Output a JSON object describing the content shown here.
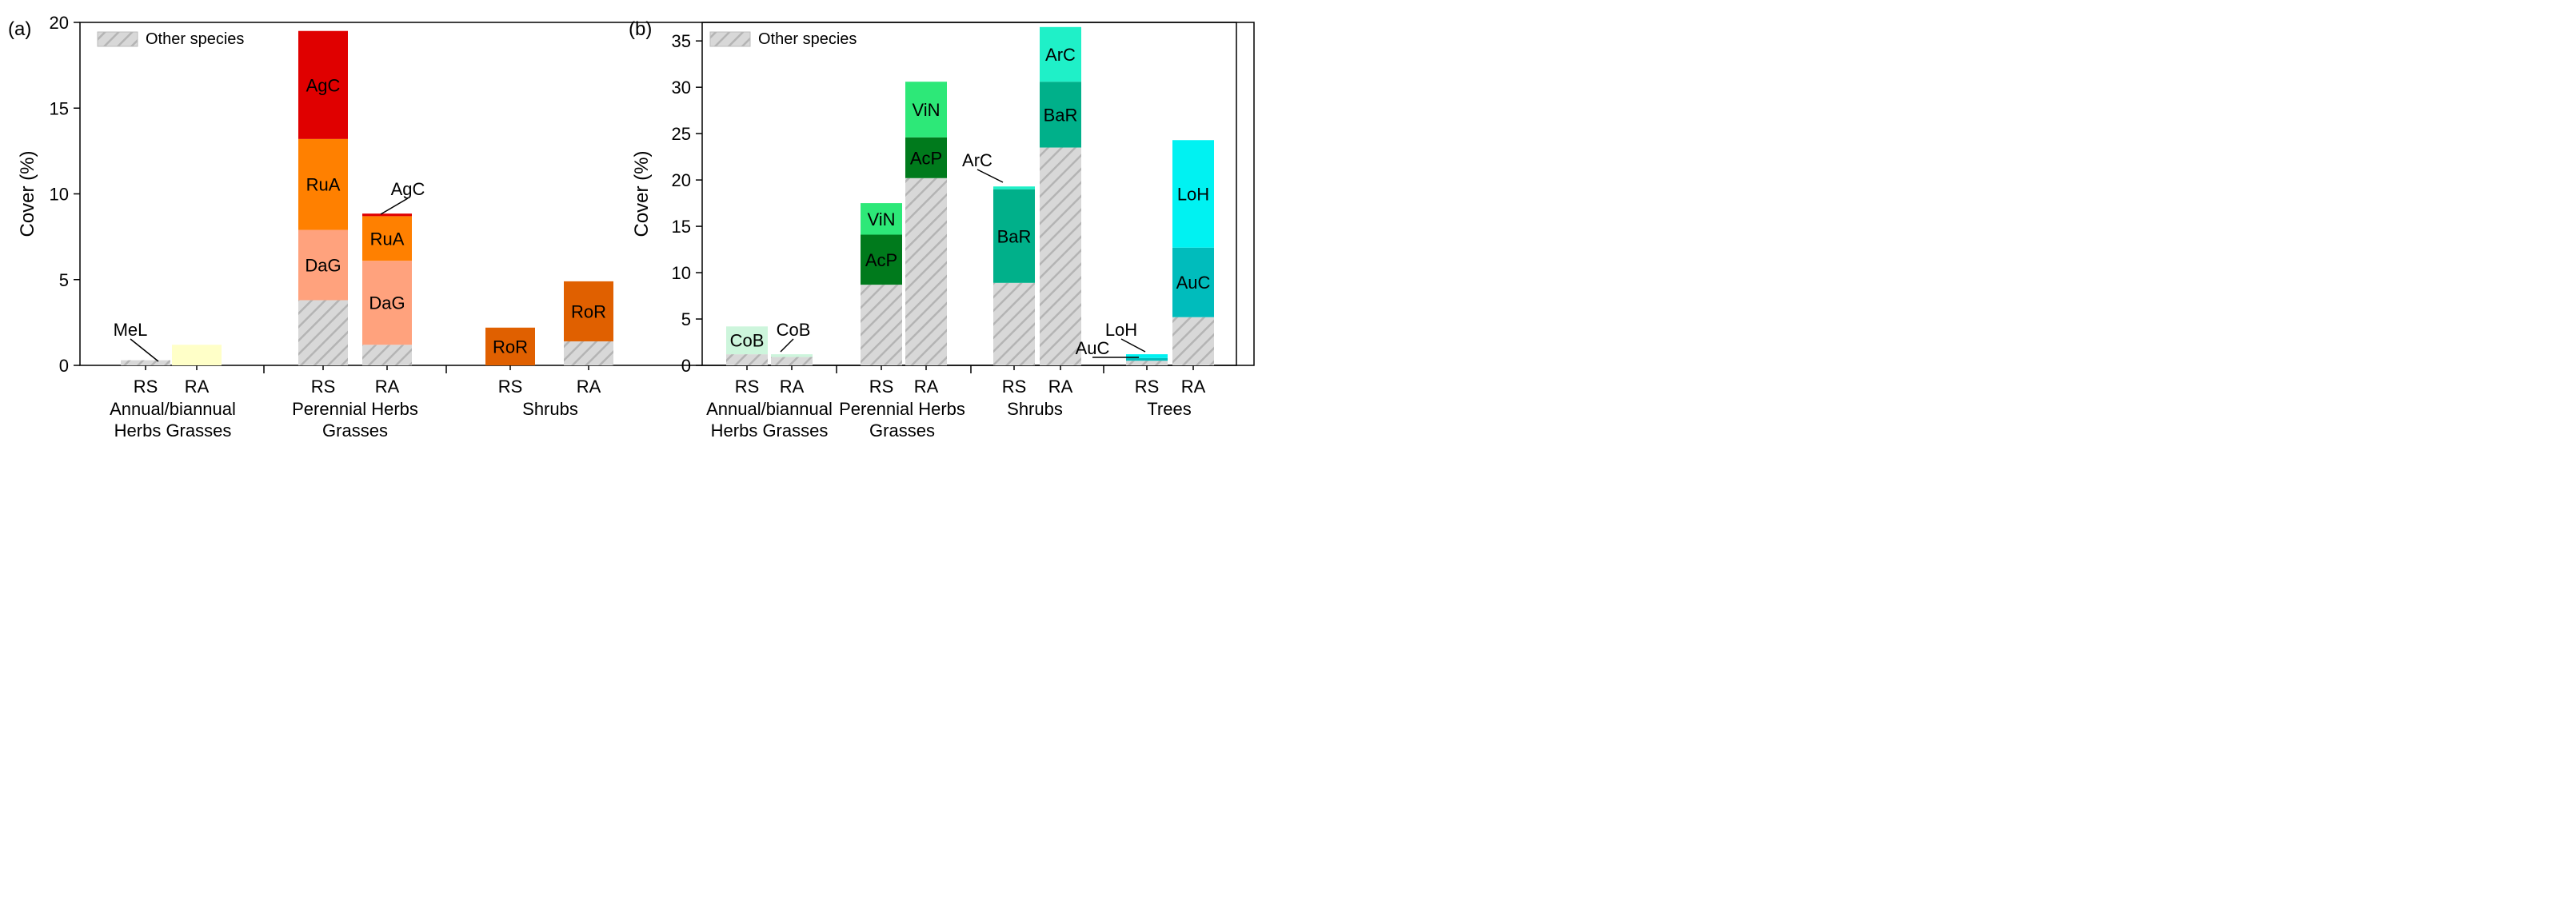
{
  "chart_data": [
    {
      "type": "bar",
      "stacked": true,
      "panel_label": "(a)",
      "ylabel": "Cover (%)",
      "ylim": [
        0,
        20
      ],
      "yticks": [
        0,
        5,
        10,
        15,
        20
      ],
      "legend": {
        "label": "Other species",
        "position": "top-left"
      },
      "groups": [
        {
          "name": "Annual/biannual Herbs Grasses",
          "label_lines": [
            "Annual/biannual",
            "Herbs Grasses"
          ],
          "bars": [
            {
              "name": "RS",
              "segments": [
                {
                  "species": "Other species",
                  "value": 0.3,
                  "color": "#d6d6d6",
                  "hatch": true
                }
              ]
            },
            {
              "name": "RA",
              "segments": [
                {
                  "species": "MeL",
                  "value": 1.2,
                  "color": "#ffffc8"
                }
              ]
            }
          ]
        },
        {
          "name": "Perennial Herbs Grasses",
          "label_lines": [
            "Perennial Herbs",
            "Grasses"
          ],
          "bars": [
            {
              "name": "RS",
              "segments": [
                {
                  "species": "Other species",
                  "value": 3.8,
                  "color": "#d6d6d6",
                  "hatch": true
                },
                {
                  "species": "DaG",
                  "value": 4.1,
                  "color": "#ffa27d"
                },
                {
                  "species": "RuA",
                  "value": 5.3,
                  "color": "#ff8000"
                },
                {
                  "species": "AgC",
                  "value": 6.3,
                  "color": "#e00000"
                }
              ]
            },
            {
              "name": "RA",
              "segments": [
                {
                  "species": "Other species",
                  "value": 1.2,
                  "color": "#d6d6d6",
                  "hatch": true
                },
                {
                  "species": "DaG",
                  "value": 4.9,
                  "color": "#ffa27d"
                },
                {
                  "species": "RuA",
                  "value": 2.6,
                  "color": "#ff8000"
                },
                {
                  "species": "AgC",
                  "value": 0.15,
                  "color": "#e00000"
                }
              ]
            }
          ]
        },
        {
          "name": "Shrubs",
          "label_lines": [
            "Shrubs"
          ],
          "bars": [
            {
              "name": "RS",
              "segments": [
                {
                  "species": "RoR",
                  "value": 2.2,
                  "color": "#e06000"
                }
              ]
            },
            {
              "name": "RA",
              "segments": [
                {
                  "species": "Other species",
                  "value": 1.4,
                  "color": "#d6d6d6",
                  "hatch": true
                },
                {
                  "species": "RoR",
                  "value": 3.5,
                  "color": "#e06000"
                }
              ]
            }
          ]
        }
      ],
      "annotations": [
        {
          "text": "MeL",
          "target": "Annual/biannual Herbs Grasses RS"
        },
        {
          "text": "AgC",
          "target": "Perennial Herbs Grasses RA"
        }
      ]
    },
    {
      "type": "bar",
      "stacked": true,
      "panel_label": "(b)",
      "ylabel": "Cover (%)",
      "ylim": [
        0,
        37
      ],
      "yticks": [
        0,
        5,
        10,
        15,
        20,
        25,
        30,
        35
      ],
      "legend": {
        "label": "Other species",
        "position": "top-left"
      },
      "groups": [
        {
          "name": "Annual/biannual Herbs Grasses",
          "label_lines": [
            "Annual/biannual",
            "Herbs Grasses"
          ],
          "bars": [
            {
              "name": "RS",
              "segments": [
                {
                  "species": "Other species",
                  "value": 1.2,
                  "color": "#d6d6d6",
                  "hatch": true
                },
                {
                  "species": "CoB",
                  "value": 3.0,
                  "color": "#cdf5dc"
                }
              ]
            },
            {
              "name": "RA",
              "segments": [
                {
                  "species": "Other species",
                  "value": 0.9,
                  "color": "#d6d6d6",
                  "hatch": true
                },
                {
                  "species": "CoB",
                  "value": 0.3,
                  "color": "#cdf5dc"
                }
              ]
            }
          ]
        },
        {
          "name": "Perennial Herbs Grasses",
          "label_lines": [
            "Perennial Herbs",
            "Grasses"
          ],
          "bars": [
            {
              "name": "RS",
              "segments": [
                {
                  "species": "Other species",
                  "value": 8.7,
                  "color": "#d6d6d6",
                  "hatch": true
                },
                {
                  "species": "AcP",
                  "value": 5.4,
                  "color": "#007a1c"
                },
                {
                  "species": "ViN",
                  "value": 3.4,
                  "color": "#2de878"
                }
              ]
            },
            {
              "name": "RA",
              "segments": [
                {
                  "species": "Other species",
                  "value": 20.2,
                  "color": "#d6d6d6",
                  "hatch": true
                },
                {
                  "species": "AcP",
                  "value": 4.4,
                  "color": "#007a1c"
                },
                {
                  "species": "ViN",
                  "value": 6.0,
                  "color": "#2de878"
                }
              ]
            }
          ]
        },
        {
          "name": "Shrubs",
          "label_lines": [
            "Shrubs"
          ],
          "bars": [
            {
              "name": "RS",
              "segments": [
                {
                  "species": "Other species",
                  "value": 8.9,
                  "color": "#d6d6d6",
                  "hatch": true
                },
                {
                  "species": "BaR",
                  "value": 10.1,
                  "color": "#00b08a"
                },
                {
                  "species": "ArC",
                  "value": 0.3,
                  "color": "#1ff0c8"
                }
              ]
            },
            {
              "name": "RA",
              "segments": [
                {
                  "species": "Other species",
                  "value": 23.5,
                  "color": "#d6d6d6",
                  "hatch": true
                },
                {
                  "species": "BaR",
                  "value": 7.1,
                  "color": "#00b08a"
                },
                {
                  "species": "ArC",
                  "value": 5.9,
                  "color": "#1ff0c8"
                }
              ]
            }
          ]
        },
        {
          "name": "Trees",
          "label_lines": [
            "Trees"
          ],
          "bars": [
            {
              "name": "RS",
              "segments": [
                {
                  "species": "Other species",
                  "value": 0.5,
                  "color": "#d6d6d6",
                  "hatch": true
                },
                {
                  "species": "AuC",
                  "value": 0.3,
                  "color": "#00bcbc"
                },
                {
                  "species": "LoH",
                  "value": 0.4,
                  "color": "#00f2f2"
                }
              ]
            },
            {
              "name": "RA",
              "segments": [
                {
                  "species": "Other species",
                  "value": 5.2,
                  "color": "#d6d6d6",
                  "hatch": true
                },
                {
                  "species": "AuC",
                  "value": 7.5,
                  "color": "#00bcbc"
                },
                {
                  "species": "LoH",
                  "value": 11.6,
                  "color": "#00f2f2"
                }
              ]
            }
          ]
        }
      ],
      "annotations": [
        {
          "text": "CoB",
          "target": "Annual/biannual Herbs Grasses RA"
        },
        {
          "text": "ArC",
          "target": "Shrubs RS"
        },
        {
          "text": "AuC",
          "target": "Trees RS"
        },
        {
          "text": "LoH",
          "target": "Trees RS"
        }
      ]
    }
  ]
}
